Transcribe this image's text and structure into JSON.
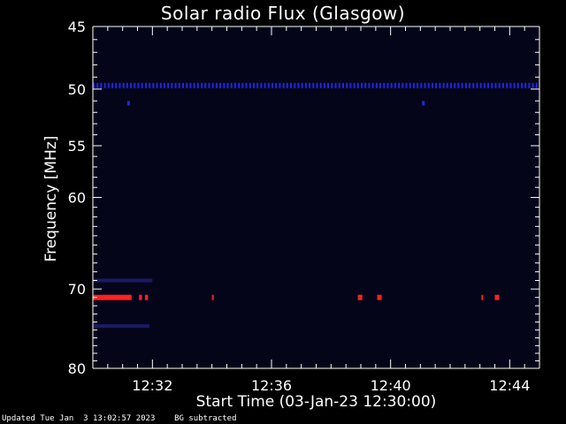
{
  "chart_data": {
    "type": "heatmap",
    "title": "Solar radio Flux (Glasgow)",
    "xlabel": "Start Time (03-Jan-23 12:30:00)",
    "ylabel": "Frequency [MHz]",
    "x_ticks": [
      "12:32",
      "12:36",
      "12:40",
      "12:44"
    ],
    "x_tick_minutes": [
      2,
      6,
      10,
      14
    ],
    "xlim_minutes": [
      0,
      15
    ],
    "y_ticks": [
      45,
      50,
      55,
      60,
      70,
      80
    ],
    "ylim": [
      45,
      80
    ],
    "y_scale": "log",
    "features": [
      {
        "kind": "continuous_band",
        "frequency_mhz": 49.7,
        "color": "#2222ee",
        "start_min": 0,
        "end_min": 15
      },
      {
        "kind": "band",
        "frequency_mhz": 71.0,
        "color": "#ff2020",
        "start_min": 0.0,
        "end_min": 1.3
      },
      {
        "kind": "band",
        "frequency_mhz": 71.0,
        "color": "#ff2020",
        "start_min": 1.55,
        "end_min": 1.65
      },
      {
        "kind": "band",
        "frequency_mhz": 71.0,
        "color": "#ff2020",
        "start_min": 1.75,
        "end_min": 1.85
      },
      {
        "kind": "band",
        "frequency_mhz": 71.0,
        "color": "#ff2020",
        "start_min": 4.0,
        "end_min": 4.05
      },
      {
        "kind": "band",
        "frequency_mhz": 71.0,
        "color": "#ff2020",
        "start_min": 8.9,
        "end_min": 9.05
      },
      {
        "kind": "band",
        "frequency_mhz": 71.0,
        "color": "#ff2020",
        "start_min": 9.55,
        "end_min": 9.7
      },
      {
        "kind": "band",
        "frequency_mhz": 71.0,
        "color": "#ff2020",
        "start_min": 13.05,
        "end_min": 13.1
      },
      {
        "kind": "band",
        "frequency_mhz": 71.0,
        "color": "#ff2020",
        "start_min": 13.5,
        "end_min": 13.65
      },
      {
        "kind": "band",
        "frequency_mhz": 69.0,
        "color": "#1a1a66",
        "start_min": 0.0,
        "end_min": 2.0
      },
      {
        "kind": "band",
        "frequency_mhz": 74.5,
        "color": "#1a1a66",
        "start_min": 0.0,
        "end_min": 1.9
      },
      {
        "kind": "spot",
        "frequency_mhz": 51.2,
        "color": "#2222ee",
        "time_min": 1.2
      },
      {
        "kind": "spot",
        "frequency_mhz": 51.2,
        "color": "#2222ee",
        "time_min": 11.1
      }
    ],
    "colors": {
      "background": "#000000",
      "plot_background": "#05051a",
      "axis": "#ffffff"
    }
  },
  "footer": {
    "updated": "Updated Tue Jan  3 13:02:57 2023",
    "note": "BG subtracted"
  }
}
